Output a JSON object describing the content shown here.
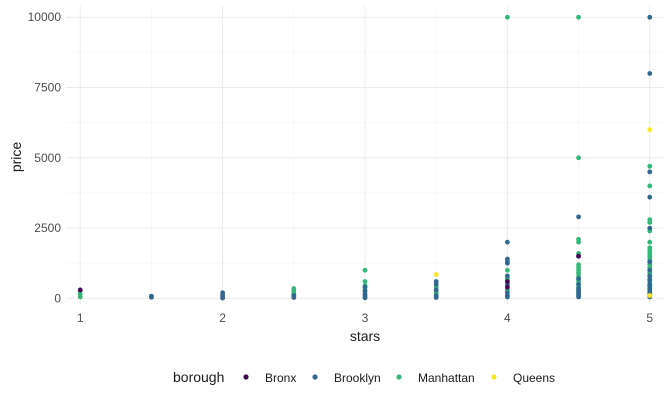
{
  "chart_data": {
    "type": "scatter",
    "title": "",
    "xlabel": "stars",
    "ylabel": "price",
    "xlim": [
      0.9,
      5.1
    ],
    "ylim": [
      -200,
      10400
    ],
    "x_ticks": [
      1,
      2,
      3,
      4,
      5
    ],
    "x_tick_labels": [
      "1",
      "2",
      "3",
      "4",
      "5"
    ],
    "y_ticks": [
      0,
      2500,
      5000,
      7500,
      10000
    ],
    "y_tick_labels": [
      "0",
      "2500",
      "5000",
      "7500",
      "10000"
    ],
    "grid": true,
    "legend": {
      "title": "borough",
      "position": "bottom",
      "entries": [
        "Bronx",
        "Brooklyn",
        "Manhattan",
        "Queens"
      ]
    },
    "colors": {
      "Bronx": "#440154",
      "Brooklyn": "#31688e",
      "Manhattan": "#35b779",
      "Queens": "#fde725"
    },
    "series": [
      {
        "name": "Manhattan",
        "points": [
          [
            1,
            250
          ],
          [
            1,
            150
          ],
          [
            1,
            50
          ],
          [
            2.5,
            350
          ],
          [
            2.5,
            250
          ],
          [
            2.5,
            150
          ],
          [
            2.5,
            60
          ],
          [
            3,
            1000
          ],
          [
            3,
            600
          ],
          [
            3,
            450
          ],
          [
            3,
            300
          ],
          [
            3.5,
            400
          ],
          [
            3.5,
            200
          ],
          [
            4,
            10000
          ],
          [
            4,
            1000
          ],
          [
            4,
            700
          ],
          [
            4,
            300
          ],
          [
            4.5,
            10000
          ],
          [
            4.5,
            5000
          ],
          [
            4.5,
            2100
          ],
          [
            4.5,
            2000
          ],
          [
            4.5,
            1600
          ],
          [
            4.5,
            1200
          ],
          [
            4.5,
            1100
          ],
          [
            4.5,
            1000
          ],
          [
            4.5,
            900
          ],
          [
            4.5,
            800
          ],
          [
            4.5,
            700
          ],
          [
            4.5,
            600
          ],
          [
            4.5,
            500
          ],
          [
            4.5,
            400
          ],
          [
            4.5,
            300
          ],
          [
            4.5,
            200
          ],
          [
            5,
            4700
          ],
          [
            5,
            4000
          ],
          [
            5,
            2800
          ],
          [
            5,
            2700
          ],
          [
            5,
            2400
          ],
          [
            5,
            2000
          ],
          [
            5,
            1800
          ],
          [
            5,
            1700
          ],
          [
            5,
            1600
          ],
          [
            5,
            1500
          ],
          [
            5,
            1400
          ],
          [
            5,
            1300
          ],
          [
            5,
            1200
          ],
          [
            5,
            1100
          ],
          [
            5,
            1000
          ],
          [
            5,
            900
          ],
          [
            5,
            800
          ],
          [
            5,
            700
          ],
          [
            5,
            600
          ],
          [
            5,
            500
          ],
          [
            5,
            400
          ],
          [
            5,
            300
          ],
          [
            5,
            200
          ],
          [
            5,
            100
          ]
        ]
      },
      {
        "name": "Brooklyn",
        "points": [
          [
            1.5,
            80
          ],
          [
            1.5,
            40
          ],
          [
            2,
            200
          ],
          [
            2,
            120
          ],
          [
            2,
            50
          ],
          [
            2,
            10
          ],
          [
            2.5,
            100
          ],
          [
            2.5,
            30
          ],
          [
            3,
            400
          ],
          [
            3,
            250
          ],
          [
            3,
            150
          ],
          [
            3,
            80
          ],
          [
            3,
            20
          ],
          [
            3.5,
            600
          ],
          [
            3.5,
            500
          ],
          [
            3.5,
            300
          ],
          [
            3.5,
            100
          ],
          [
            3.5,
            30
          ],
          [
            4,
            2000
          ],
          [
            4,
            1400
          ],
          [
            4,
            1300
          ],
          [
            4,
            1250
          ],
          [
            4,
            800
          ],
          [
            4,
            500
          ],
          [
            4,
            200
          ],
          [
            4,
            100
          ],
          [
            4,
            50
          ],
          [
            4.5,
            2900
          ],
          [
            4.5,
            1500
          ],
          [
            4.5,
            700
          ],
          [
            4.5,
            500
          ],
          [
            4.5,
            350
          ],
          [
            4.5,
            250
          ],
          [
            4.5,
            150
          ],
          [
            4.5,
            100
          ],
          [
            4.5,
            50
          ],
          [
            5,
            10000
          ],
          [
            5,
            8000
          ],
          [
            5,
            4500
          ],
          [
            5,
            3600
          ],
          [
            5,
            2500
          ],
          [
            5,
            1300
          ],
          [
            5,
            1000
          ],
          [
            5,
            800
          ],
          [
            5,
            650
          ],
          [
            5,
            500
          ],
          [
            5,
            450
          ],
          [
            5,
            350
          ],
          [
            5,
            250
          ],
          [
            5,
            150
          ],
          [
            5,
            50
          ]
        ]
      },
      {
        "name": "Bronx",
        "points": [
          [
            1,
            300
          ],
          [
            4,
            600
          ],
          [
            4,
            400
          ],
          [
            4.5,
            1500
          ]
        ]
      },
      {
        "name": "Queens",
        "points": [
          [
            3.5,
            850
          ],
          [
            5,
            6000
          ],
          [
            5,
            100
          ]
        ]
      }
    ]
  }
}
